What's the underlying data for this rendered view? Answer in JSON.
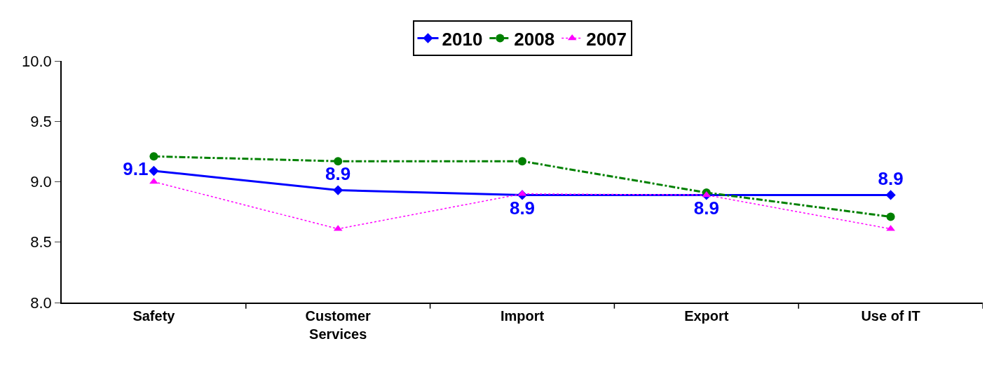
{
  "chart_data": {
    "type": "line",
    "categories": [
      "Safety",
      "Customer Services",
      "Import",
      "Export",
      "Use of IT"
    ],
    "series": [
      {
        "name": "2010",
        "color": "#0000ff",
        "values": [
          9.09,
          8.93,
          8.89,
          8.89,
          8.89
        ],
        "marker": "diamond",
        "line_style": "solid",
        "value_labels": [
          "9.1",
          "8.9",
          "8.9",
          "8.9",
          "8.9"
        ]
      },
      {
        "name": "2008",
        "color": "#008000",
        "values": [
          9.21,
          9.17,
          9.17,
          8.91,
          8.71
        ],
        "marker": "circle",
        "line_style": "dashed"
      },
      {
        "name": "2007",
        "color": "#ff00ff",
        "values": [
          9.0,
          8.61,
          8.9,
          8.89,
          8.61
        ],
        "marker": "triangle",
        "line_style": "dotted"
      }
    ],
    "ylim": [
      8,
      10
    ],
    "yticks": [
      {
        "value": 8,
        "label": "8.0"
      },
      {
        "value": 8.5,
        "label": "8.5"
      },
      {
        "value": 9,
        "label": "9.0"
      },
      {
        "value": 9.5,
        "label": "9.5"
      },
      {
        "value": 10,
        "label": "10.0"
      }
    ],
    "grid": false,
    "legend": "top"
  }
}
